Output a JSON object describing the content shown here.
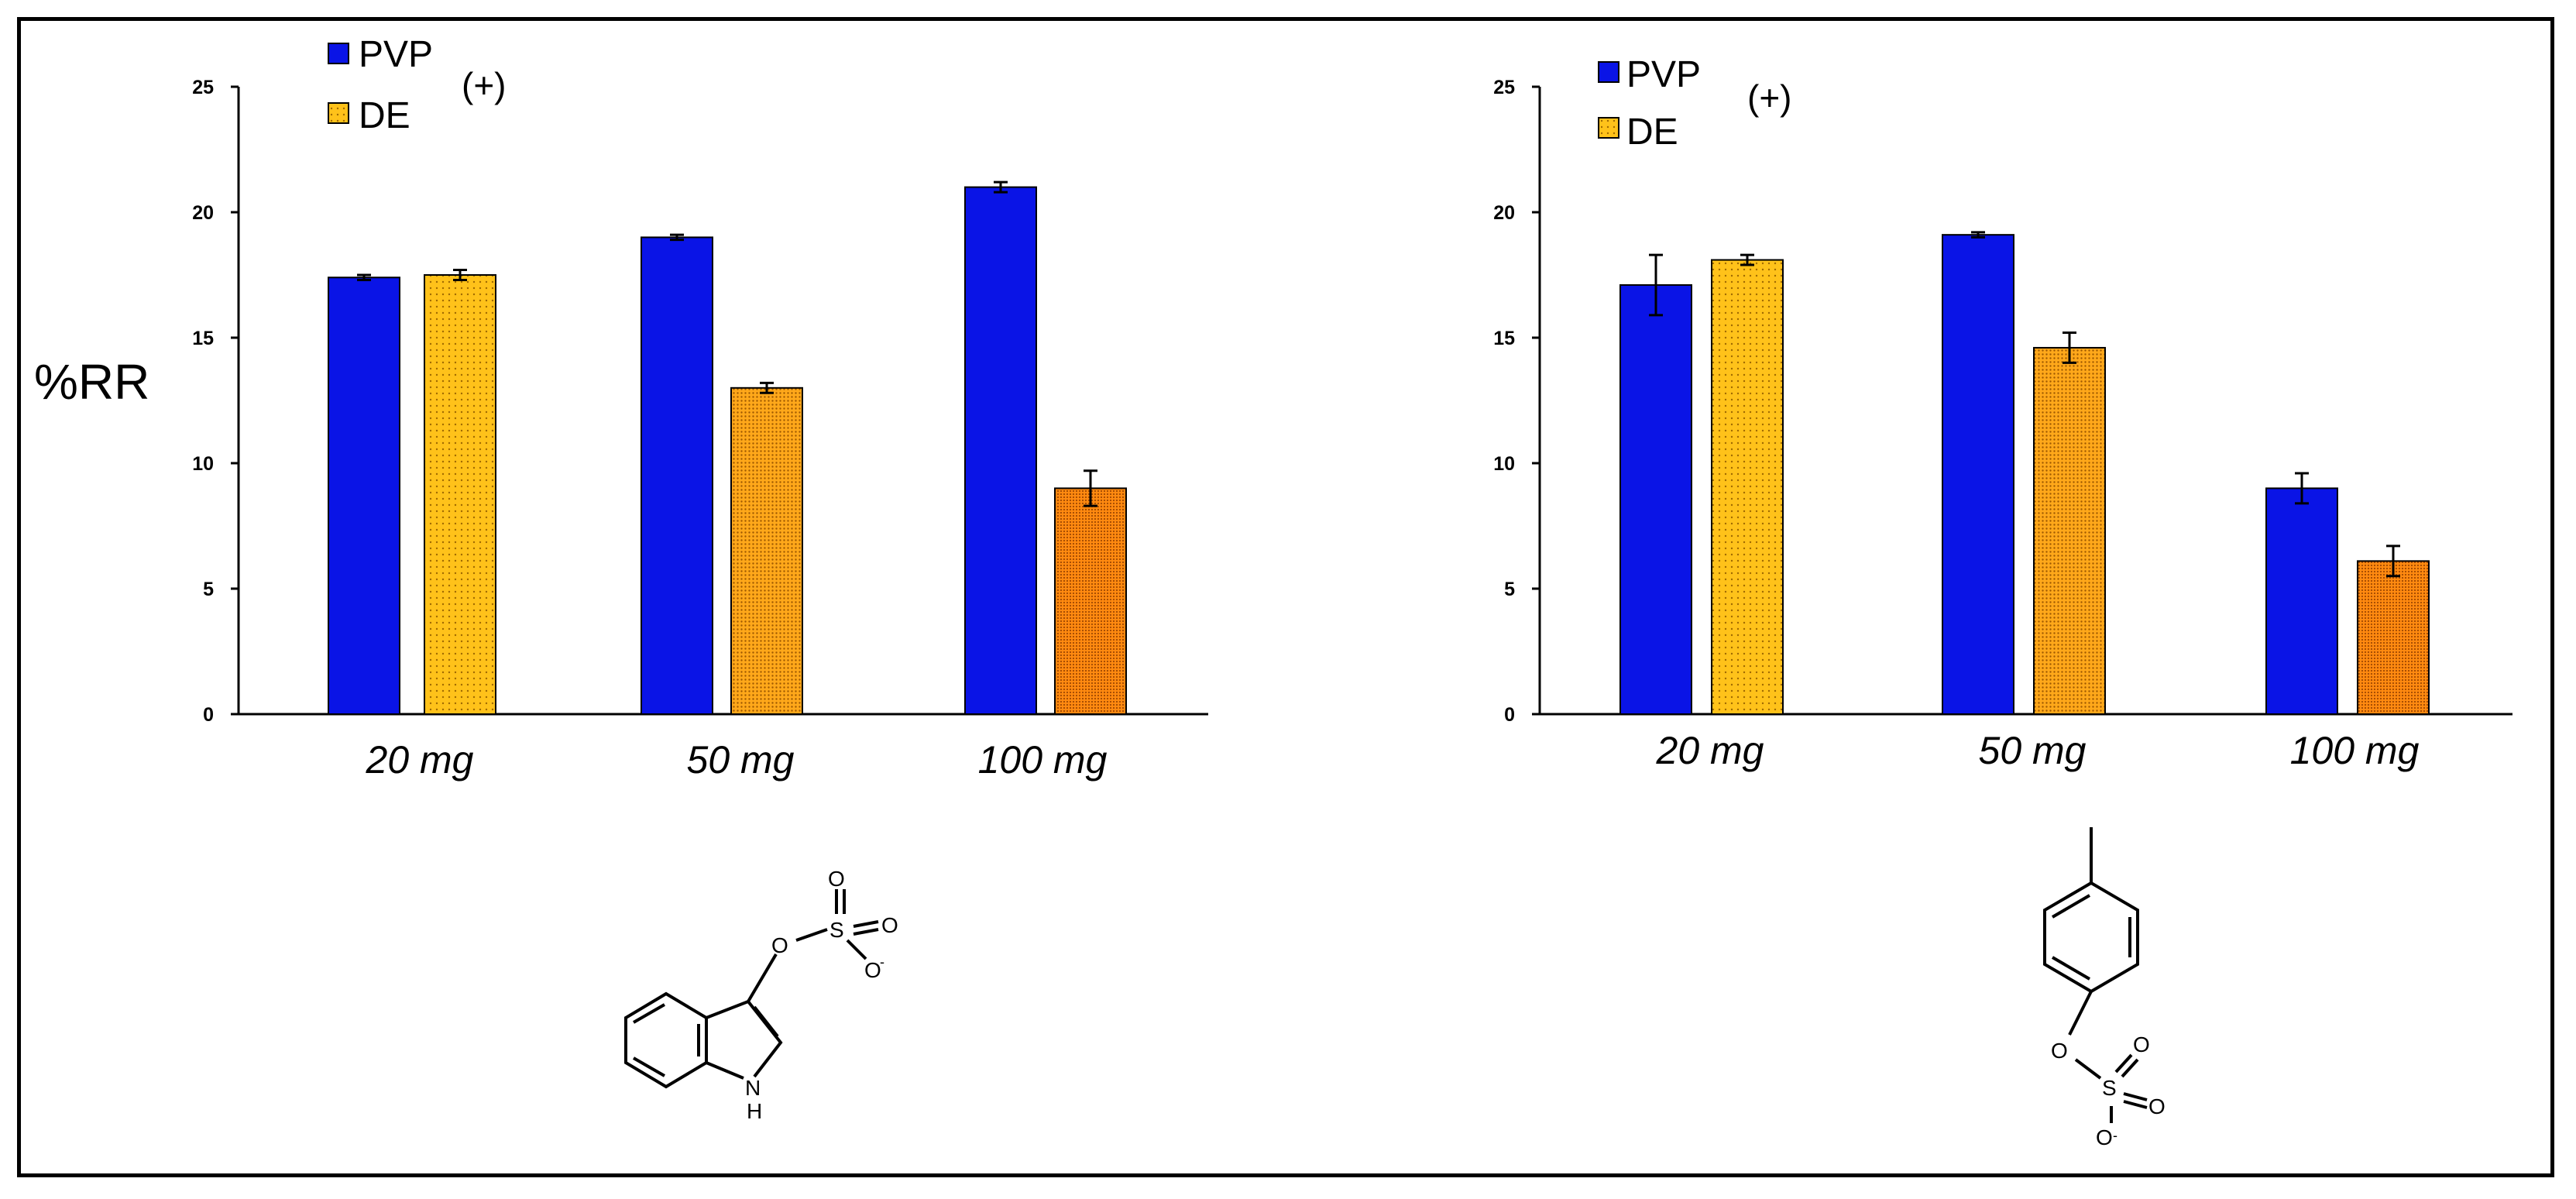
{
  "colors": {
    "pvp": "#0a14e6",
    "de_light": "#ffc21a",
    "de_mid": "#ffa81a",
    "de_dark": "#ff8c10"
  },
  "chart_data": [
    {
      "type": "bar",
      "ylabel": "%RR",
      "annotation": "(+)",
      "ylim": [
        0,
        25
      ],
      "yticks": [
        0,
        5,
        10,
        15,
        20,
        25
      ],
      "categories": [
        "20 mg",
        "50 mg",
        "100 mg"
      ],
      "series": [
        {
          "name": "PVP",
          "values": [
            17.4,
            19.0,
            21.0
          ],
          "errors": [
            0.1,
            0.1,
            0.2
          ]
        },
        {
          "name": "DE",
          "values": [
            17.5,
            13.0,
            9.0
          ],
          "errors": [
            0.2,
            0.2,
            0.7
          ]
        }
      ],
      "structure": {
        "atoms": [
          "O",
          "S",
          "O",
          "O",
          "O",
          "-",
          "N",
          "H"
        ]
      }
    },
    {
      "type": "bar",
      "ylabel": "",
      "annotation": "(+)",
      "ylim": [
        0,
        25
      ],
      "yticks": [
        0,
        5,
        10,
        15,
        20,
        25
      ],
      "categories": [
        "20 mg",
        "50 mg",
        "100 mg"
      ],
      "series": [
        {
          "name": "PVP",
          "values": [
            17.1,
            19.1,
            9.0
          ],
          "errors": [
            1.2,
            0.1,
            0.6
          ]
        },
        {
          "name": "DE",
          "values": [
            18.1,
            14.6,
            6.1
          ],
          "errors": [
            0.2,
            0.6,
            0.6
          ]
        }
      ],
      "structure": {
        "atoms": [
          "O",
          "S",
          "O",
          "O",
          "O",
          "-"
        ]
      }
    }
  ]
}
